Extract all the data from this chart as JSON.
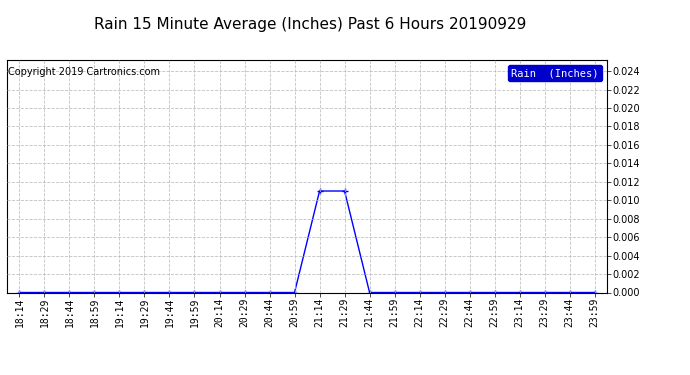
{
  "title": "Rain 15 Minute Average (Inches) Past 6 Hours 20190929",
  "copyright_text": "Copyright 2019 Cartronics.com",
  "legend_label": "Rain  (Inches)",
  "legend_bg_color": "#0000cc",
  "legend_text_color": "#ffffff",
  "line_color": "#0000ff",
  "background_color": "#ffffff",
  "grid_color": "#bbbbbb",
  "ylim": [
    0.0,
    0.0252
  ],
  "yticks": [
    0.0,
    0.002,
    0.004,
    0.006,
    0.008,
    0.01,
    0.012,
    0.014,
    0.016,
    0.018,
    0.02,
    0.022,
    0.024
  ],
  "x_labels": [
    "18:14",
    "18:29",
    "18:44",
    "18:59",
    "19:14",
    "19:29",
    "19:44",
    "19:59",
    "20:14",
    "20:29",
    "20:44",
    "20:59",
    "21:14",
    "21:29",
    "21:44",
    "21:59",
    "22:14",
    "22:29",
    "22:44",
    "22:59",
    "23:14",
    "23:29",
    "23:44",
    "23:59"
  ],
  "y_values": [
    0.0,
    0.0,
    0.0,
    0.0,
    0.0,
    0.0,
    0.0,
    0.0,
    0.0,
    0.0,
    0.0,
    0.0,
    0.011,
    0.011,
    0.0,
    0.0,
    0.0,
    0.0,
    0.0,
    0.0,
    0.0,
    0.0,
    0.0,
    0.0
  ],
  "title_fontsize": 11,
  "tick_fontsize": 7,
  "copyright_fontsize": 7,
  "legend_fontsize": 7.5
}
